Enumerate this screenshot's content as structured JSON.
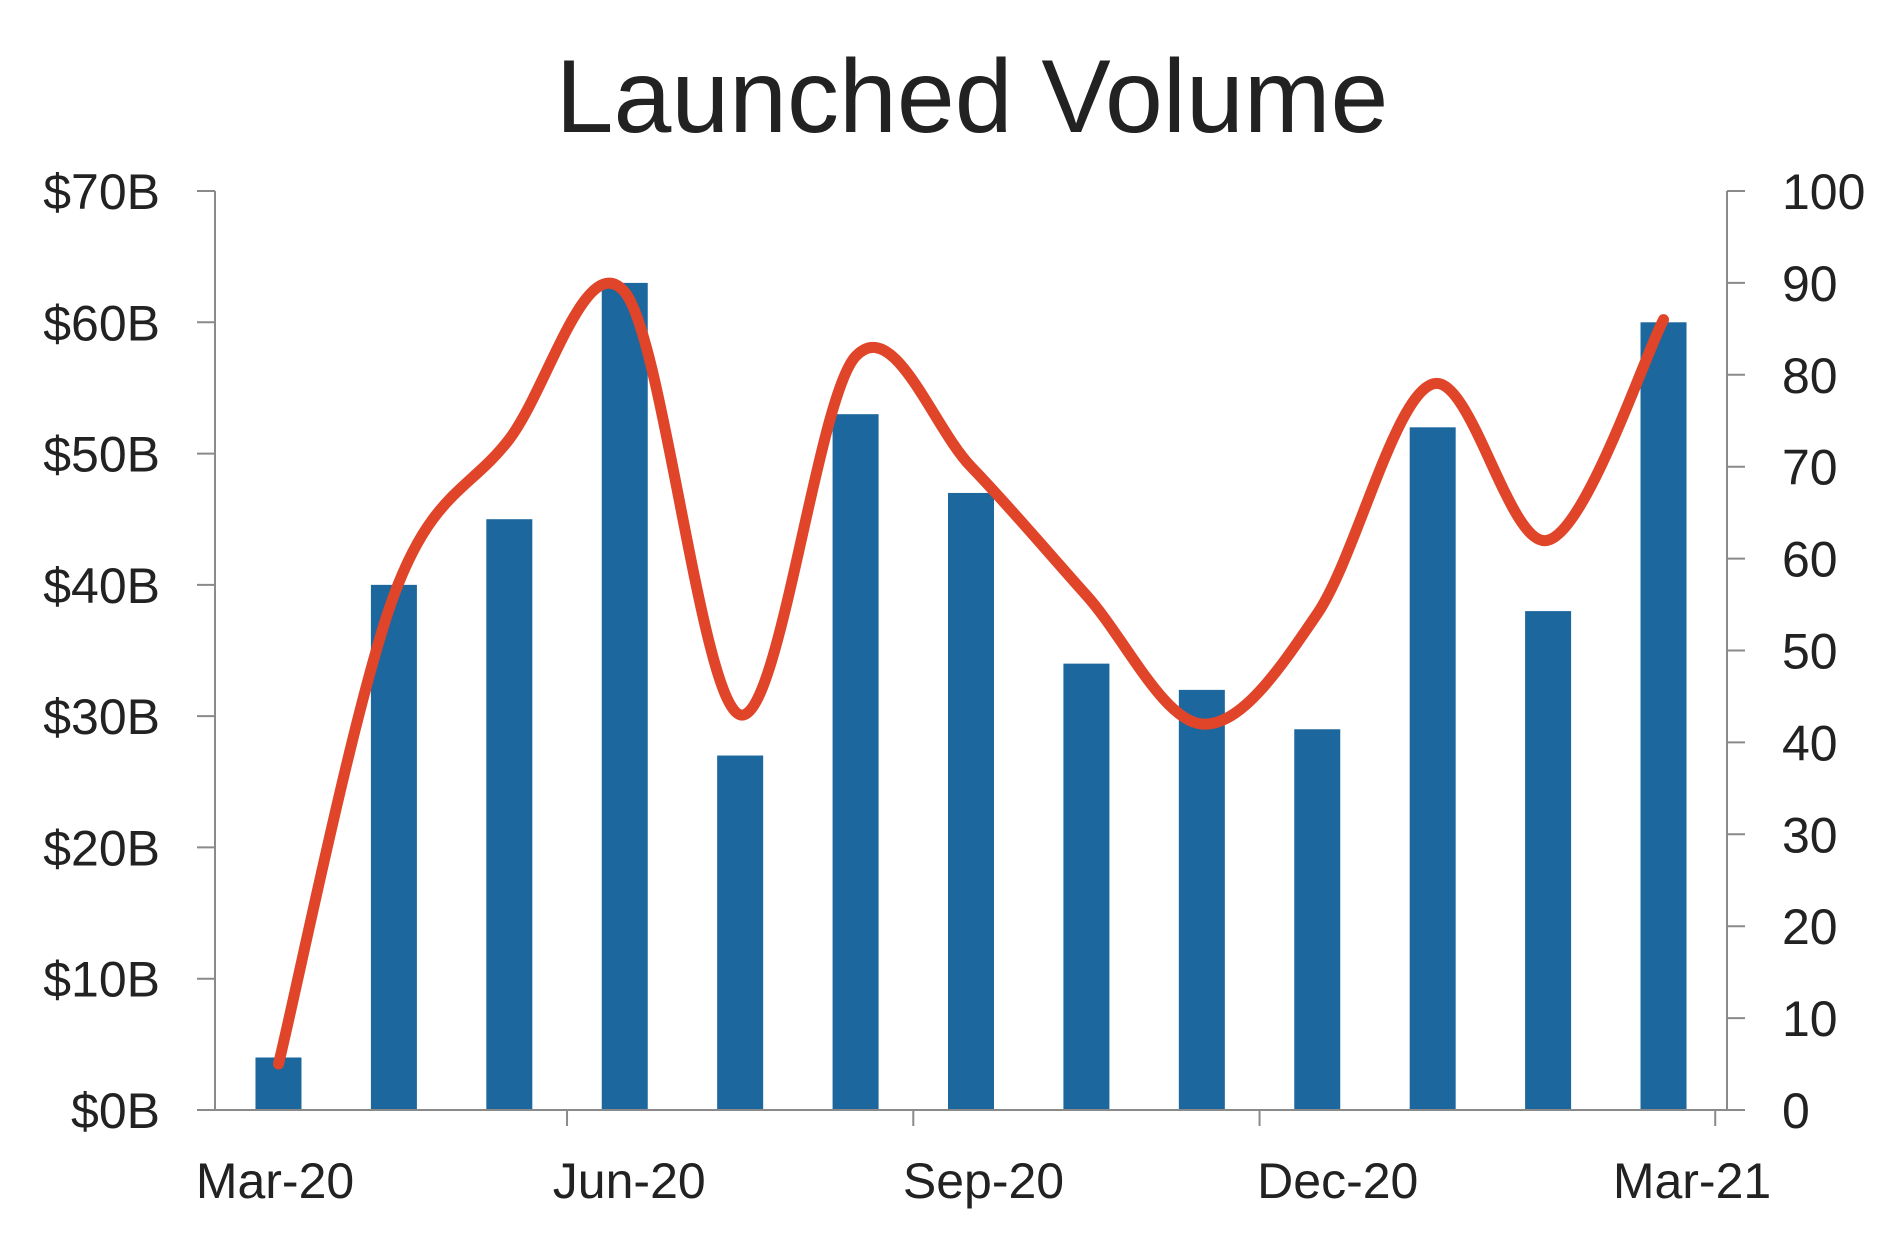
{
  "chart_data": {
    "type": "bar",
    "title": "Launched Volume",
    "categories": [
      "Mar-20",
      "Apr-20",
      "May-20",
      "Jun-20",
      "Jul-20",
      "Aug-20",
      "Sep-20",
      "Oct-20",
      "Nov-20",
      "Dec-20",
      "Jan-21",
      "Feb-21",
      "Mar-21"
    ],
    "series": [
      {
        "type": "bar",
        "axis": "left",
        "color": "#1b679e",
        "values": [
          4,
          40,
          45,
          63,
          27,
          53,
          47,
          34,
          32,
          29,
          52,
          38,
          60
        ]
      },
      {
        "type": "line",
        "axis": "right",
        "color": "#e0452a",
        "smooth": true,
        "values": [
          5,
          56,
          73,
          89,
          43,
          82,
          70,
          56,
          42,
          54,
          79,
          62,
          86
        ]
      }
    ],
    "x_tick_labels": [
      "Mar-20",
      "Jun-20",
      "Sep-20",
      "Dec-20",
      "Mar-21"
    ],
    "y_left": {
      "range": [
        0,
        70
      ],
      "ticks": [
        0,
        10,
        20,
        30,
        40,
        50,
        60,
        70
      ],
      "tick_labels": [
        "$0B",
        "$10B",
        "$20B",
        "$30B",
        "$40B",
        "$50B",
        "$60B",
        "$70B"
      ]
    },
    "y_right": {
      "range": [
        0,
        100
      ],
      "ticks": [
        0,
        10,
        20,
        30,
        40,
        50,
        60,
        70,
        80,
        90,
        100
      ],
      "tick_labels": [
        "0",
        "10",
        "20",
        "30",
        "40",
        "50",
        "60",
        "70",
        "80",
        "90",
        "100"
      ]
    },
    "grid": false,
    "legend": "none"
  }
}
